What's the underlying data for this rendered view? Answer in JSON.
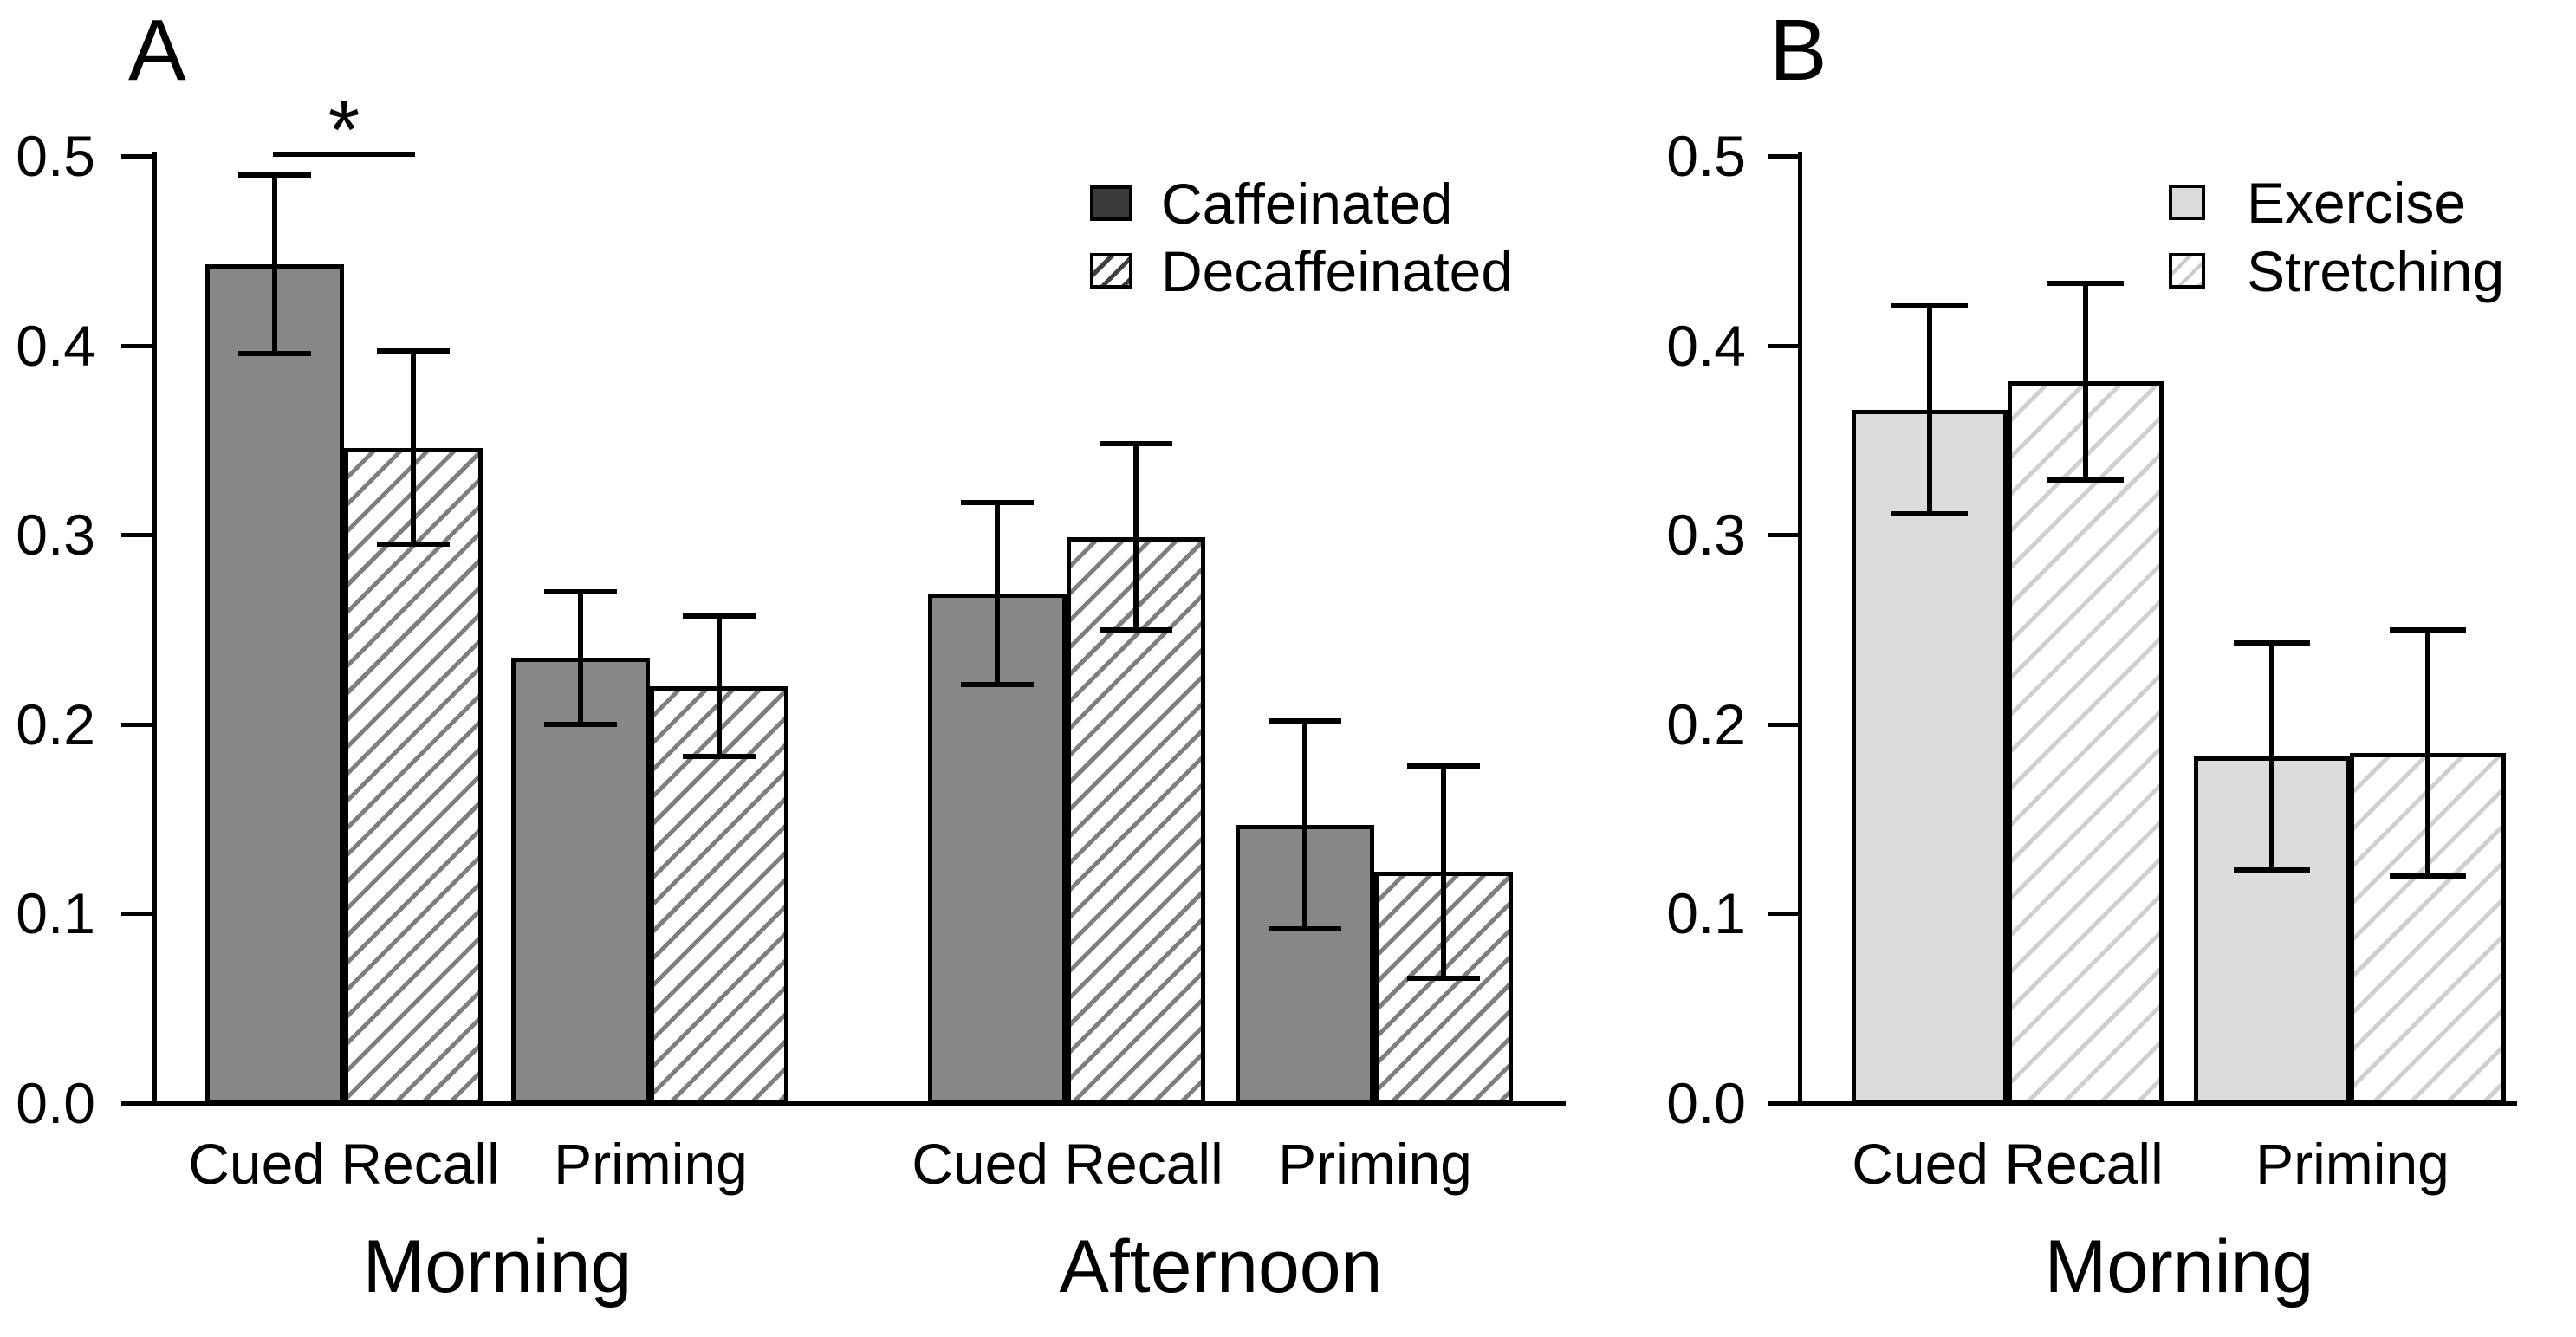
{
  "figure": {
    "background": "#ffffff",
    "panels": [
      {
        "letter": "A",
        "legend": [
          {
            "label": "Caffeinated",
            "swatch": "dark-solid"
          },
          {
            "label": "Decaffeinated",
            "swatch": "dark-hatch"
          }
        ]
      },
      {
        "letter": "B",
        "legend": [
          {
            "label": "Exercise",
            "swatch": "light-solid"
          },
          {
            "label": "Stretching",
            "swatch": "light-hatch"
          }
        ]
      }
    ],
    "colors": {
      "bar_solid_a": "#878787",
      "bar_hatch_line_a": "#7e7e7e",
      "bar_solid_b": "#dbdbdb",
      "bar_hatch_line_b": "#cfcfcf",
      "legend_caffeinated_fill": "#3a3a3a",
      "outline": "#000000"
    }
  },
  "chart_data": [
    {
      "type": "bar",
      "panel": "A",
      "title": "A",
      "xlabel": "",
      "ylabel": "",
      "ylim": [
        0,
        0.5
      ],
      "grid": false,
      "legend_position": "top-right-inside",
      "y_ticks": [
        "0.0",
        "0.1",
        "0.2",
        "0.3",
        "0.4",
        "0.5"
      ],
      "series": [
        "Caffeinated",
        "Decaffeinated"
      ],
      "supercategories": [
        "Morning",
        "Afternoon"
      ],
      "groups": [
        {
          "supercategory": "Morning",
          "category": "Cued Recall",
          "values": [
            0.442,
            0.345
          ],
          "errors": [
            0.047,
            0.051
          ]
        },
        {
          "supercategory": "Morning",
          "category": "Priming",
          "values": [
            0.234,
            0.219
          ],
          "errors": [
            0.035,
            0.037
          ]
        },
        {
          "supercategory": "Afternoon",
          "category": "Cued Recall",
          "values": [
            0.268,
            0.298
          ],
          "errors": [
            0.048,
            0.049
          ]
        },
        {
          "supercategory": "Afternoon",
          "category": "Priming",
          "values": [
            0.146,
            0.121
          ],
          "errors": [
            0.055,
            0.056
          ]
        }
      ],
      "significance": {
        "symbol": "*",
        "comparison": "Caffeinated vs Decaffeinated, Morning Cued Recall",
        "level": 0.5
      }
    },
    {
      "type": "bar",
      "panel": "B",
      "title": "B",
      "xlabel": "",
      "ylabel": "",
      "ylim": [
        0,
        0.5
      ],
      "grid": false,
      "legend_position": "top-right-inside",
      "y_ticks": [
        "0.0",
        "0.1",
        "0.2",
        "0.3",
        "0.4",
        "0.5"
      ],
      "series": [
        "Exercise",
        "Stretching"
      ],
      "supercategories": [
        "Morning"
      ],
      "groups": [
        {
          "supercategory": "Morning",
          "category": "Cued Recall",
          "values": [
            0.365,
            0.38
          ],
          "errors": [
            0.055,
            0.052
          ]
        },
        {
          "supercategory": "Morning",
          "category": "Priming",
          "values": [
            0.182,
            0.184
          ],
          "errors": [
            0.06,
            0.065
          ]
        }
      ],
      "significance": null
    }
  ]
}
